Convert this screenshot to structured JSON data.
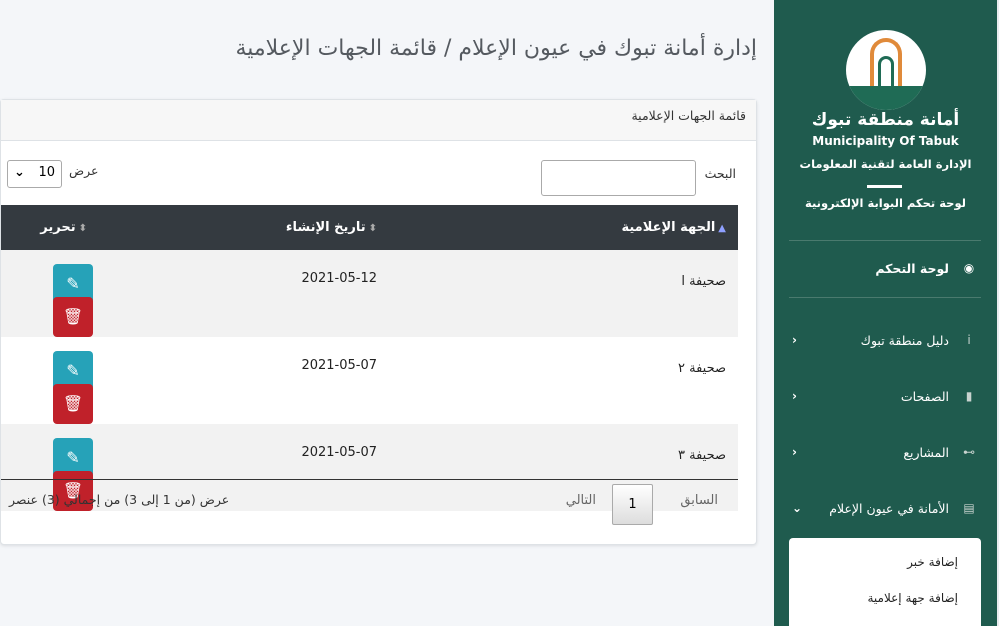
{
  "sidebar": {
    "brand_ar": "أمانة منطقة تبوك",
    "brand_en": "Municipality Of Tabuk",
    "department": "الإدارة العامة لتقنية المعلومات",
    "portal": "لوحة تحكم البوابة الإلكترونية",
    "items": [
      {
        "label": "لوحة التحكم",
        "icon": "tachometer-icon"
      },
      {
        "label": "دليل منطقة تبوك",
        "icon": "info-icon"
      },
      {
        "label": "الصفحات",
        "icon": "file-icon"
      },
      {
        "label": "المشاريع",
        "icon": "sitemap-icon"
      },
      {
        "label": "الأمانة في عيون الإعلام",
        "icon": "newspaper-icon"
      }
    ],
    "submenu": [
      "إضافة خبر",
      "إضافة جهة إعلامية"
    ],
    "color": "#1f5b4e"
  },
  "page_title": "إدارة أمانة تبوك في عيون الإعلام / قائمة الجهات الإعلامية",
  "card": {
    "title": "قائمة الجهات الإعلامية",
    "search_label": "البحث",
    "search_value": "",
    "length_label": "عرض",
    "length_value": "10",
    "columns": [
      "الجهة الإعلامية",
      "تاريخ الإنشاء",
      "تحرير"
    ],
    "rows": [
      {
        "name": "صحيفة ا",
        "date": "2021-05-12"
      },
      {
        "name": "صحيفة ٢",
        "date": "2021-05-07"
      },
      {
        "name": "صحيفة ٣",
        "date": "2021-05-07"
      }
    ],
    "pagination": {
      "prev": "السابق",
      "page": "1",
      "next": "التالي"
    },
    "info": "عرض (من 1 إلى 3) من إجمالي (3) عنصر"
  }
}
